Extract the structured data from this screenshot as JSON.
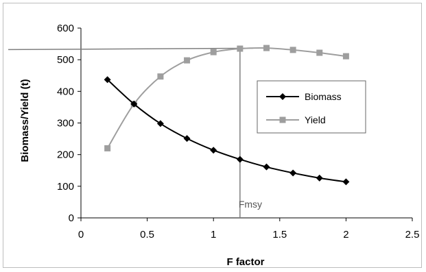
{
  "chart_data": {
    "type": "line",
    "title": "",
    "xlabel": "F factor",
    "ylabel": "Biomass/Yield (t)",
    "xlim": [
      0,
      2.5
    ],
    "ylim": [
      0,
      600
    ],
    "xticks": [
      "0",
      "0.5",
      "1",
      "1.5",
      "2",
      "2.5"
    ],
    "yticks": [
      "0",
      "100",
      "200",
      "300",
      "400",
      "500",
      "600"
    ],
    "grid": false,
    "legend_position": "right",
    "x": [
      0.2,
      0.4,
      0.6,
      0.8,
      1.0,
      1.2,
      1.4,
      1.6,
      1.8,
      2.0
    ],
    "series": [
      {
        "name": "Biomass",
        "marker": "diamond",
        "color": "#000000",
        "values": [
          437,
          360,
          298,
          251,
          214,
          185,
          161,
          142,
          126,
          114
        ]
      },
      {
        "name": "Yield",
        "marker": "square",
        "color": "#9e9e9e",
        "values": [
          220,
          360,
          447,
          498,
          524,
          535,
          537,
          531,
          522,
          511
        ]
      }
    ],
    "annotations": [
      {
        "label": "Fmsy",
        "type": "vertical-line",
        "x": 1.2
      },
      {
        "label": "",
        "type": "horizontal-line",
        "y": 532,
        "x_end": 1.3
      }
    ]
  }
}
